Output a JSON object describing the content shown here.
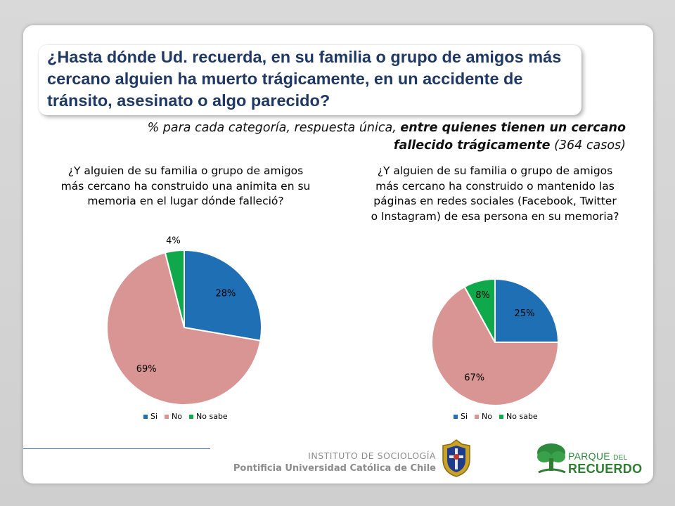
{
  "title": "¿Hasta dónde Ud. recuerda, en su familia o grupo de amigos más cercano alguien ha muerto trágicamente, en un accidente de tránsito, asesinato o algo parecido?",
  "subtitle": {
    "part1": "% para cada categoría, respuesta única, ",
    "part2_bold": "entre quienes tienen un cercano fallecido trágicamente",
    "part3": " (364 casos)"
  },
  "colors": {
    "si": "#1f6fb5",
    "no": "#d99594",
    "no_sabe": "#0fa84a",
    "title": "#1f3864"
  },
  "chart_data": [
    {
      "type": "pie",
      "title": "¿Y alguien de su familia o grupo de amigos más cercano ha construido una animita en su memoria en el lugar dónde falleció?",
      "categories": [
        "Si",
        "No",
        "No sabe"
      ],
      "values": [
        28,
        69,
        4
      ],
      "labels": [
        "28%",
        "69%",
        "4%"
      ],
      "legend": "bottom"
    },
    {
      "type": "pie",
      "title": "¿Y alguien de su familia o grupo de amigos más cercano ha construido o mantenido las páginas en redes sociales (Facebook, Twitter o Instagram) de esa persona en su memoria?",
      "categories": [
        "Si",
        "No",
        "No sabe"
      ],
      "values": [
        25,
        67,
        8
      ],
      "labels": [
        "25%",
        "67%",
        "8%"
      ],
      "legend": "bottom"
    }
  ],
  "footer": {
    "institute": "INSTITUTO DE SOCIOLOGÍA",
    "university": "Pontificia Universidad Católica de Chile",
    "logo_line1": "PARQUE",
    "logo_del": "DEL",
    "logo_line2": "RECUERDO"
  }
}
